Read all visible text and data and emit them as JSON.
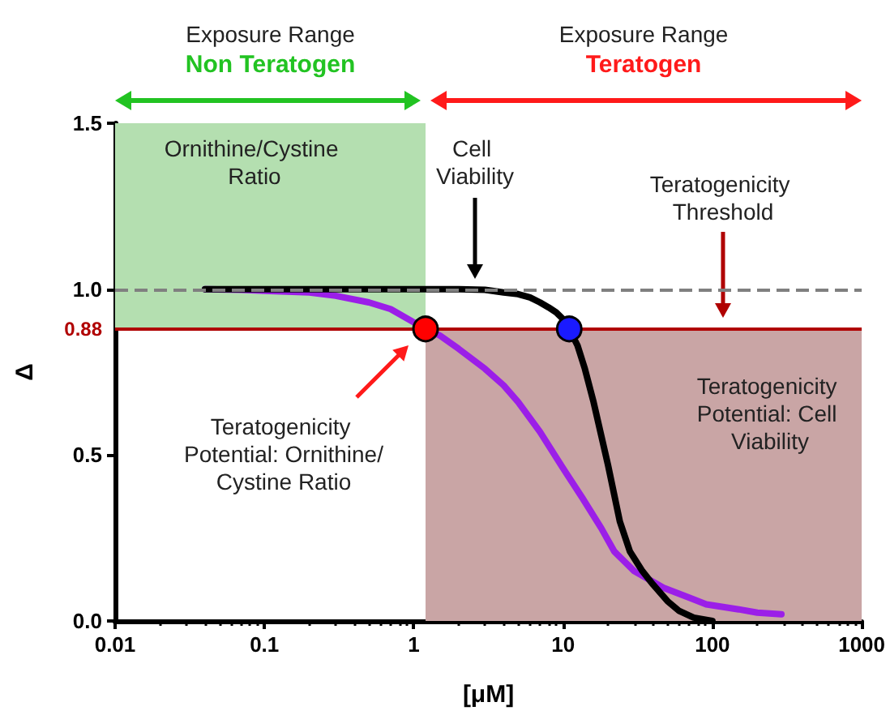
{
  "chart_data": {
    "type": "line",
    "xlabel": "[μM]",
    "ylabel": "Δ",
    "log": "x",
    "xlim": [
      0.01,
      1000
    ],
    "xticks": [
      0.01,
      0.1,
      1,
      10,
      100,
      1000
    ],
    "ylim": [
      0,
      1.5
    ],
    "yticks": [
      {
        "value": 0,
        "label": "0.0"
      },
      {
        "value": 0.5,
        "label": "0.5"
      },
      {
        "value": 1,
        "label": "1.0"
      },
      {
        "value": 1.5,
        "label": "1.5"
      }
    ],
    "grid": false,
    "series": [
      {
        "marker": "none",
        "color": "#9b1fe8",
        "x": [
          0.04,
          0.07,
          0.1,
          0.2,
          0.3,
          0.5,
          0.7,
          1.0,
          1.5,
          2,
          3,
          4,
          5,
          7,
          10,
          13.5,
          18,
          22,
          30,
          47,
          70,
          91,
          150,
          200,
          290
        ],
        "values": [
          1.0,
          0.998,
          0.995,
          0.99,
          0.98,
          0.96,
          0.94,
          0.9,
          0.86,
          0.82,
          0.76,
          0.71,
          0.66,
          0.57,
          0.46,
          0.37,
          0.28,
          0.21,
          0.15,
          0.1,
          0.07,
          0.05,
          0.035,
          0.025,
          0.02
        ]
      },
      {
        "marker": "none",
        "color": "#000000",
        "x": [
          0.04,
          1,
          2,
          3,
          4,
          5,
          6,
          7,
          8,
          9,
          10,
          11,
          12.5,
          14,
          16,
          18,
          20,
          24,
          28,
          34,
          40,
          50,
          60,
          75,
          100
        ],
        "values": [
          1.0,
          1.0,
          1.0,
          0.998,
          0.99,
          0.985,
          0.975,
          0.96,
          0.945,
          0.93,
          0.91,
          0.88,
          0.83,
          0.76,
          0.66,
          0.56,
          0.47,
          0.3,
          0.21,
          0.15,
          0.11,
          0.06,
          0.03,
          0.01,
          0.0
        ]
      },
      {
        "type": "scatter",
        "marker": "circle",
        "color": "#ff0000",
        "x": [
          1.2
        ],
        "values": [
          0.88
        ]
      },
      {
        "type": "scatter",
        "marker": "circle",
        "color": "#1a1aff",
        "x": [
          11
        ],
        "values": [
          0.88
        ]
      }
    ],
    "ref_lines": [
      {
        "axis": "y",
        "value": 1.0,
        "color": "#808080",
        "line_style": "dashed"
      },
      {
        "axis": "y",
        "value": 0.88,
        "label": "0.88",
        "color": "#b00000",
        "line_style": "solid"
      }
    ],
    "bands": [
      {
        "axis": "x",
        "from": 0.01,
        "to": 1.2,
        "color": "#b4dfb0"
      },
      {
        "axis": "x",
        "from": 1.2,
        "to": 1000,
        "color": "#c9a5a5"
      }
    ],
    "annotations": [
      "Exposure Range",
      "Non Teratogen",
      "Exposure Range",
      "Teratogen",
      "Ornithine/Cystine Ratio",
      "Cell Viability",
      "Teratogenicity Threshold",
      "Teratogenicity Potential: Ornithine/Cystine Ratio",
      "Teratogenicity Potential: Cell Viability"
    ]
  }
}
